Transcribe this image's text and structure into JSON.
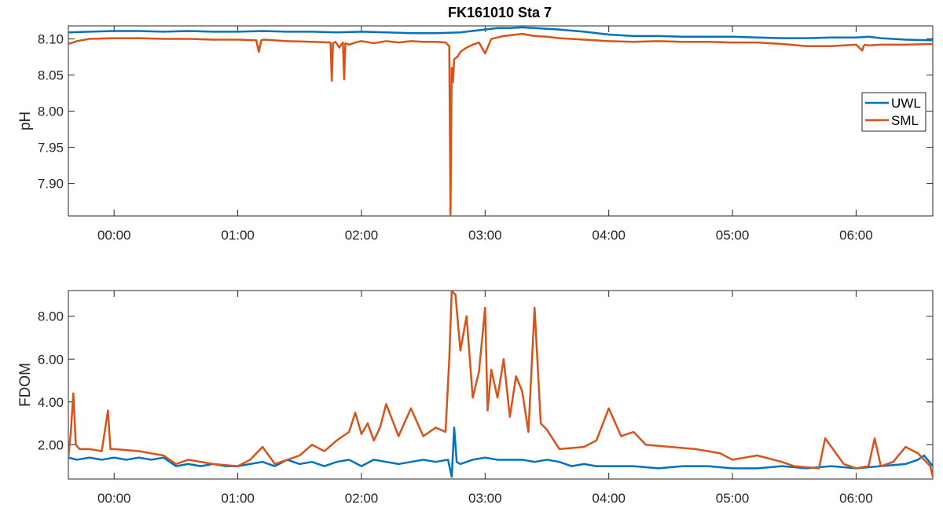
{
  "figure": {
    "title": "FK161010 Sta 7"
  },
  "colors": {
    "UWL": "#0072BD",
    "SML": "#D95319",
    "axis": "#262626"
  },
  "chart_data": [
    {
      "type": "line",
      "title": "FK161010 Sta 7",
      "xlabel": "",
      "ylabel": "pH",
      "x_unit": "hours since 00:00",
      "xlim": [
        -0.37,
        6.62
      ],
      "ylim": [
        7.855,
        8.118
      ],
      "xticks": [
        0,
        1,
        2,
        3,
        4,
        5,
        6
      ],
      "xtick_labels": [
        "00:00",
        "01:00",
        "02:00",
        "03:00",
        "04:00",
        "05:00",
        "06:00"
      ],
      "yticks": [
        7.9,
        7.95,
        8.0,
        8.05,
        8.1
      ],
      "ytick_labels": [
        "7.90",
        "7.95",
        "8.00",
        "8.05",
        "8.10"
      ],
      "legend": {
        "position": "right",
        "entries": [
          "UWL",
          "SML"
        ]
      },
      "grid": false,
      "series": [
        {
          "name": "UWL",
          "color": "#0072BD",
          "x": [
            -0.37,
            -0.2,
            0.0,
            0.2,
            0.4,
            0.6,
            0.8,
            1.0,
            1.2,
            1.4,
            1.6,
            1.8,
            2.0,
            2.2,
            2.4,
            2.6,
            2.8,
            2.95,
            3.1,
            3.2,
            3.3,
            3.4,
            3.6,
            3.8,
            4.0,
            4.2,
            4.4,
            4.6,
            4.8,
            5.0,
            5.2,
            5.4,
            5.6,
            5.8,
            6.0,
            6.1,
            6.2,
            6.4,
            6.62
          ],
          "values": [
            8.109,
            8.11,
            8.111,
            8.111,
            8.11,
            8.111,
            8.11,
            8.11,
            8.111,
            8.11,
            8.11,
            8.109,
            8.11,
            8.109,
            8.108,
            8.108,
            8.109,
            8.112,
            8.115,
            8.115,
            8.116,
            8.115,
            8.113,
            8.11,
            8.106,
            8.104,
            8.104,
            8.103,
            8.103,
            8.103,
            8.102,
            8.101,
            8.101,
            8.102,
            8.102,
            8.103,
            8.101,
            8.099,
            8.098
          ]
        },
        {
          "name": "SML",
          "color": "#D95319",
          "x": [
            -0.37,
            -0.3,
            -0.2,
            0.0,
            0.2,
            0.4,
            0.6,
            0.8,
            1.0,
            1.15,
            1.17,
            1.19,
            1.21,
            1.4,
            1.6,
            1.75,
            1.76,
            1.77,
            1.79,
            1.82,
            1.85,
            1.86,
            1.87,
            1.9,
            1.95,
            2.0,
            2.1,
            2.2,
            2.3,
            2.4,
            2.5,
            2.6,
            2.68,
            2.71,
            2.72,
            2.73,
            2.74,
            2.75,
            2.78,
            2.8,
            2.85,
            2.9,
            2.95,
            3.0,
            3.05,
            3.1,
            3.15,
            3.2,
            3.3,
            3.4,
            3.5,
            3.6,
            3.8,
            4.0,
            4.2,
            4.4,
            4.6,
            4.8,
            5.0,
            5.2,
            5.4,
            5.6,
            5.8,
            6.0,
            6.05,
            6.06,
            6.07,
            6.1,
            6.2,
            6.4,
            6.62
          ],
          "values": [
            8.093,
            8.097,
            8.1,
            8.101,
            8.101,
            8.1,
            8.1,
            8.099,
            8.099,
            8.098,
            8.082,
            8.098,
            8.099,
            8.097,
            8.096,
            8.095,
            8.042,
            8.094,
            8.096,
            8.088,
            8.095,
            8.044,
            8.094,
            8.092,
            8.095,
            8.097,
            8.094,
            8.097,
            8.095,
            8.097,
            8.096,
            8.096,
            8.095,
            8.09,
            7.855,
            8.06,
            8.04,
            8.072,
            8.076,
            8.082,
            8.088,
            8.092,
            8.095,
            8.08,
            8.1,
            8.102,
            8.104,
            8.105,
            8.107,
            8.104,
            8.103,
            8.101,
            8.099,
            8.097,
            8.096,
            8.097,
            8.096,
            8.096,
            8.095,
            8.095,
            8.093,
            8.09,
            8.09,
            8.092,
            8.084,
            8.09,
            8.092,
            8.091,
            8.092,
            8.092,
            8.093
          ]
        }
      ]
    },
    {
      "type": "line",
      "title": "",
      "xlabel": "",
      "ylabel": "FDOM",
      "x_unit": "hours since 00:00",
      "xlim": [
        -0.37,
        6.62
      ],
      "ylim": [
        0.4,
        9.2
      ],
      "xticks": [
        0,
        1,
        2,
        3,
        4,
        5,
        6
      ],
      "xtick_labels": [
        "00:00",
        "01:00",
        "02:00",
        "03:00",
        "04:00",
        "05:00",
        "06:00"
      ],
      "yticks": [
        2,
        4,
        6,
        8
      ],
      "ytick_labels": [
        "2.00",
        "4.00",
        "6.00",
        "8.00"
      ],
      "grid": false,
      "series": [
        {
          "name": "UWL",
          "color": "#0072BD",
          "x": [
            -0.37,
            -0.3,
            -0.2,
            -0.1,
            0.0,
            0.1,
            0.2,
            0.3,
            0.4,
            0.5,
            0.6,
            0.7,
            0.8,
            0.9,
            1.0,
            1.1,
            1.2,
            1.3,
            1.4,
            1.5,
            1.6,
            1.7,
            1.8,
            1.9,
            2.0,
            2.1,
            2.2,
            2.3,
            2.4,
            2.5,
            2.6,
            2.7,
            2.73,
            2.75,
            2.77,
            2.8,
            2.9,
            3.0,
            3.1,
            3.2,
            3.3,
            3.4,
            3.5,
            3.6,
            3.7,
            3.8,
            3.9,
            4.0,
            4.2,
            4.4,
            4.6,
            4.8,
            5.0,
            5.2,
            5.4,
            5.6,
            5.8,
            6.0,
            6.2,
            6.4,
            6.5,
            6.55,
            6.62
          ],
          "values": [
            1.4,
            1.3,
            1.4,
            1.3,
            1.4,
            1.3,
            1.4,
            1.3,
            1.4,
            1.0,
            1.1,
            1.0,
            1.1,
            1.0,
            1.0,
            1.1,
            1.2,
            1.0,
            1.3,
            1.1,
            1.2,
            1.0,
            1.2,
            1.3,
            1.0,
            1.3,
            1.2,
            1.1,
            1.2,
            1.3,
            1.2,
            1.3,
            0.5,
            2.8,
            1.2,
            1.1,
            1.3,
            1.4,
            1.3,
            1.3,
            1.3,
            1.2,
            1.3,
            1.2,
            1.0,
            1.1,
            1.0,
            1.0,
            1.0,
            0.9,
            1.0,
            1.0,
            0.9,
            0.9,
            1.0,
            0.9,
            1.0,
            0.9,
            1.0,
            1.1,
            1.3,
            1.5,
            1.0
          ]
        },
        {
          "name": "SML",
          "color": "#D95319",
          "x": [
            -0.37,
            -0.35,
            -0.33,
            -0.31,
            -0.28,
            -0.2,
            -0.1,
            -0.05,
            -0.03,
            0.0,
            0.2,
            0.4,
            0.5,
            0.6,
            0.8,
            1.0,
            1.1,
            1.2,
            1.3,
            1.5,
            1.6,
            1.7,
            1.8,
            1.9,
            1.95,
            2.0,
            2.05,
            2.1,
            2.15,
            2.2,
            2.3,
            2.4,
            2.5,
            2.6,
            2.68,
            2.71,
            2.73,
            2.76,
            2.8,
            2.85,
            2.9,
            2.95,
            3.0,
            3.02,
            3.05,
            3.1,
            3.15,
            3.2,
            3.25,
            3.3,
            3.35,
            3.4,
            3.45,
            3.5,
            3.6,
            3.8,
            3.9,
            4.0,
            4.1,
            4.2,
            4.3,
            4.5,
            4.7,
            4.9,
            5.0,
            5.2,
            5.4,
            5.5,
            5.7,
            5.75,
            5.8,
            5.9,
            6.0,
            6.1,
            6.15,
            6.2,
            6.3,
            6.4,
            6.5,
            6.6,
            6.62
          ],
          "values": [
            1.4,
            2.6,
            4.4,
            2.0,
            1.8,
            1.8,
            1.7,
            3.6,
            1.8,
            1.8,
            1.7,
            1.5,
            1.1,
            1.3,
            1.1,
            1.0,
            1.3,
            1.9,
            1.1,
            1.5,
            2.0,
            1.7,
            2.2,
            2.6,
            3.5,
            2.5,
            3.0,
            2.2,
            2.8,
            3.9,
            2.4,
            3.7,
            2.4,
            2.8,
            2.6,
            6.0,
            9.2,
            9.0,
            6.4,
            8.0,
            4.2,
            5.4,
            8.4,
            3.6,
            5.5,
            4.2,
            6.0,
            3.3,
            5.2,
            4.5,
            2.6,
            8.4,
            3.0,
            2.7,
            1.8,
            1.9,
            2.2,
            3.7,
            2.4,
            2.6,
            2.0,
            1.9,
            1.8,
            1.6,
            1.3,
            1.5,
            1.2,
            1.0,
            0.9,
            2.3,
            1.9,
            1.1,
            0.9,
            1.0,
            2.3,
            1.0,
            1.2,
            1.9,
            1.6,
            1.0,
            0.5
          ]
        }
      ]
    }
  ]
}
